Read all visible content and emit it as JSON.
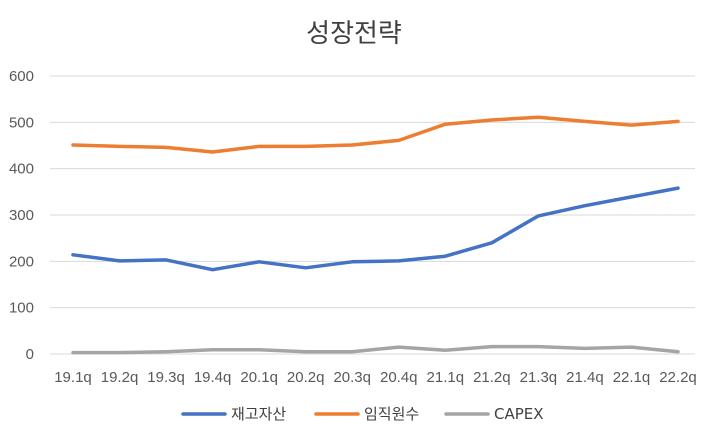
{
  "chart_data": {
    "type": "line",
    "title": "성장전략",
    "xlabel": "",
    "ylabel": "",
    "ylim": [
      0,
      600
    ],
    "yticks": [
      0,
      100,
      200,
      300,
      400,
      500,
      600
    ],
    "grid": true,
    "legend_position": "bottom",
    "categories": [
      "19.1q",
      "19.2q",
      "19.3q",
      "19.4q",
      "20.1q",
      "20.2q",
      "20.3q",
      "20.4q",
      "21.1q",
      "21.2q",
      "21.3q",
      "21.4q",
      "22.1q",
      "22.2q"
    ],
    "series": [
      {
        "name": "재고자산",
        "color": "#4472C4",
        "values": [
          214,
          201,
          203,
          182,
          199,
          186,
          199,
          201,
          211,
          240,
          298,
          320,
          339,
          358
        ]
      },
      {
        "name": "임직원수",
        "color": "#ED7D31",
        "values": [
          451,
          448,
          446,
          436,
          448,
          448,
          451,
          461,
          496,
          505,
          511,
          502,
          494,
          502
        ]
      },
      {
        "name": "CAPEX",
        "color": "#A5A5A5",
        "values": [
          3,
          3,
          5,
          9,
          9,
          5,
          5,
          15,
          8,
          16,
          16,
          12,
          15,
          5
        ]
      }
    ]
  }
}
